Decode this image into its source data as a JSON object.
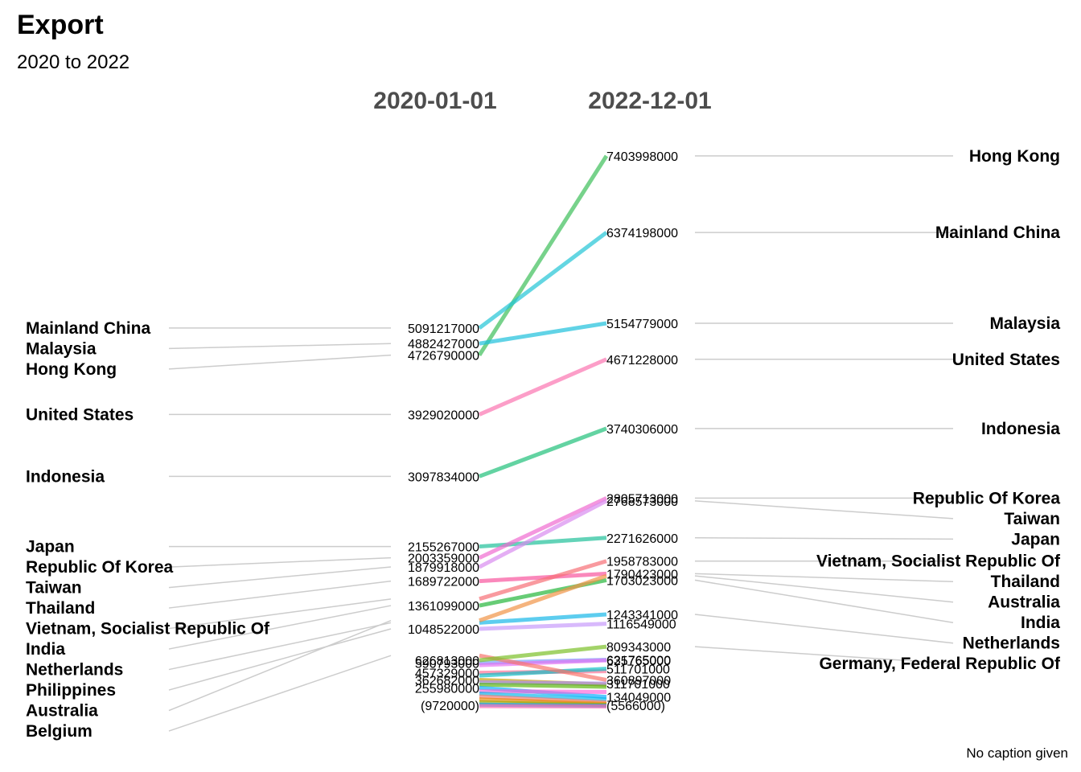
{
  "chart_data": {
    "type": "slope",
    "title": "Export",
    "subtitle": "2020 to 2022",
    "caption": "No caption given",
    "x": [
      "2020-01-01",
      "2022-12-01"
    ],
    "series": [
      {
        "name": "Hong Kong",
        "values": [
          4726790000,
          7403998000
        ],
        "color": "#3DBF5A"
      },
      {
        "name": "Mainland China",
        "values": [
          5091217000,
          6374198000
        ],
        "color": "#22C5D6"
      },
      {
        "name": "Malaysia",
        "values": [
          4882427000,
          5154779000
        ],
        "color": "#1EC0DC"
      },
      {
        "name": "United States",
        "values": [
          3929020000,
          4671228000
        ],
        "color": "#FB75B0"
      },
      {
        "name": "Indonesia",
        "values": [
          3097834000,
          3740306000
        ],
        "color": "#21C07A"
      },
      {
        "name": "Japan",
        "values": [
          2155267000,
          2271626000
        ],
        "color": "#21C09A"
      },
      {
        "name": "Republic Of Korea",
        "values": [
          2003359000,
          2805713000
        ],
        "color": "#F06BD0"
      },
      {
        "name": "Taiwan",
        "values": [
          1879918000,
          2768573000
        ],
        "color": "#D98BEF"
      },
      {
        "name": "Thailand",
        "values": [
          1689722000,
          1790423000
        ],
        "color": "#F8569E"
      },
      {
        "name": "Vietnam, Socialist Republic Of",
        "values": [
          1450000000,
          1958783000
        ],
        "color": "#F66F76"
      },
      {
        "name": "India",
        "values": [
          1361099000,
          1703023000
        ],
        "color": "#26B63C"
      },
      {
        "name": "Netherlands",
        "values": [
          1130000000,
          1243341000
        ],
        "color": "#18B8E8"
      },
      {
        "name": "Philippines",
        "values": [
          1048522000,
          1116549000
        ],
        "color": "#C79BFB"
      },
      {
        "name": "Australia",
        "values": [
          1160000000,
          1760000000
        ],
        "color": "#F19447"
      },
      {
        "name": "Belgium",
        "values": [
          690000000,
          360897000
        ],
        "color": "#F8766D"
      },
      {
        "name": "Germany, Federal Republic Of",
        "values": [
          626813000,
          809343000
        ],
        "color": "#7CC02A"
      }
    ],
    "minor_series": [
      {
        "values": [
          590793000,
          631765000
        ],
        "color": "#6D9CF9"
      },
      {
        "values": [
          560000000,
          625765000
        ],
        "color": "#E76BF3"
      },
      {
        "values": [
          457329000,
          480000000
        ],
        "color": "#FF6C91"
      },
      {
        "values": [
          420000000,
          511701000
        ],
        "color": "#00BFC4"
      },
      {
        "values": [
          362682000,
          300000000
        ],
        "color": "#C49A00"
      },
      {
        "values": [
          330000000,
          311701000
        ],
        "color": "#A58AFF"
      },
      {
        "values": [
          300000000,
          270000000
        ],
        "color": "#53B400"
      },
      {
        "values": [
          255980000,
          134049000
        ],
        "color": "#00A9FF"
      },
      {
        "values": [
          210000000,
          200000000
        ],
        "color": "#FB61D7"
      },
      {
        "values": [
          180000000,
          100000000
        ],
        "color": "#00B6EB"
      },
      {
        "values": [
          140000000,
          60000000
        ],
        "color": "#F8766D"
      },
      {
        "values": [
          100000000,
          40000000
        ],
        "color": "#E58700"
      },
      {
        "values": [
          60000000,
          25000000
        ],
        "color": "#99A800"
      },
      {
        "values": [
          30000000,
          15000000
        ],
        "color": "#06A4FF"
      },
      {
        "values": [
          9720000,
          5566000
        ],
        "color": "#FF65AC"
      }
    ],
    "left_labels": [
      "Mainland China",
      "Malaysia",
      "Hong Kong",
      "United States",
      "Indonesia",
      "Japan",
      "Republic Of Korea",
      "Taiwan",
      "Thailand",
      "Vietnam, Socialist Republic Of",
      "India",
      "Netherlands",
      "Philippines",
      "Australia",
      "Belgium"
    ],
    "right_labels": [
      "Hong Kong",
      "Mainland China",
      "Malaysia",
      "United States",
      "Indonesia",
      "Republic Of Korea",
      "Taiwan",
      "Japan",
      "Vietnam, Socialist Republic Of",
      "Thailand",
      "Australia",
      "India",
      "Netherlands",
      "Germany, Federal Republic Of"
    ],
    "left_value_labels": [
      "5091217000",
      "4882427000",
      "4726790000",
      "3929020000",
      "3097834000",
      "2155267000",
      "2003359000",
      "1879918000",
      "1689722000",
      "1361099000",
      "1048522000",
      "626813000",
      "590793000",
      "457329000",
      "362682000",
      "255980000",
      "(9720000)"
    ],
    "right_value_labels": [
      "7403998000",
      "6374198000",
      "5154779000",
      "4671228000",
      "3740306000",
      "2805713000",
      "2768573000",
      "2271626000",
      "1958783000",
      "1790423000",
      "1703023000",
      "1243341000",
      "1116549000",
      "809343000",
      "631765000",
      "625765000",
      "511701000",
      "360897000",
      "311701000",
      "134049000",
      "(5566000)"
    ],
    "ylim": [
      0,
      7500000000
    ],
    "grid": false,
    "legend": "none"
  }
}
